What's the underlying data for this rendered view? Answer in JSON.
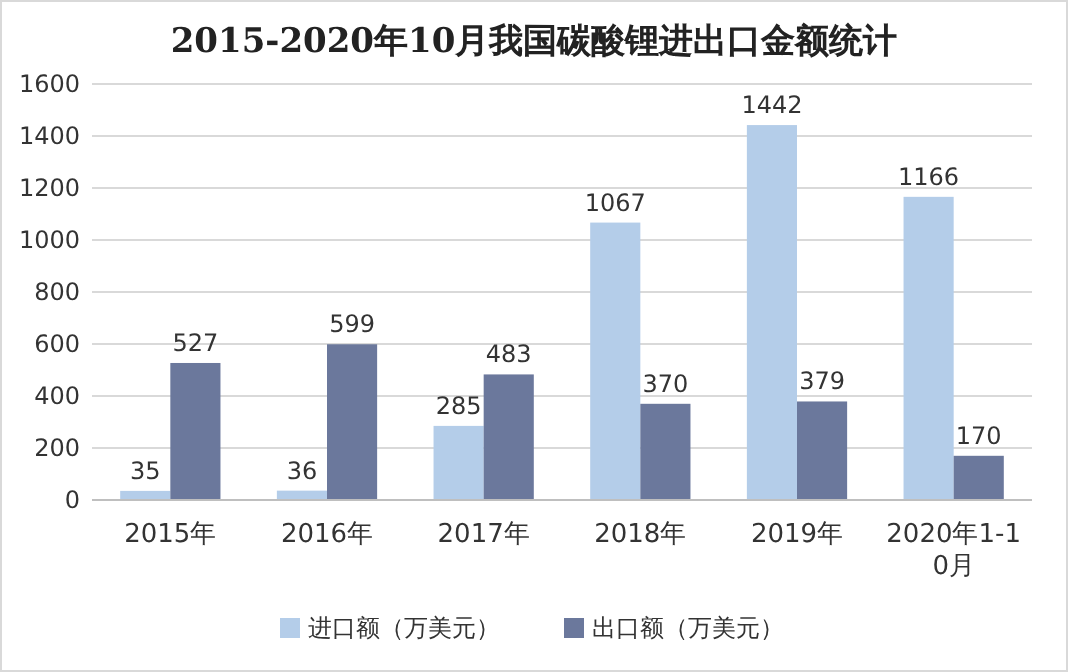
{
  "chart_data": {
    "type": "bar",
    "title": "2015-2020年10月我国碳酸锂进出口金额统计",
    "categories": [
      "2015年",
      "2016年",
      "2017年",
      "2018年",
      "2019年",
      "2020年1-10月"
    ],
    "series": [
      {
        "name": "进口额（万美元）",
        "color": "#b4cde9",
        "values": [
          35,
          36,
          285,
          1067,
          1442,
          1166
        ]
      },
      {
        "name": "出口额（万美元）",
        "color": "#6b789c",
        "values": [
          527,
          599,
          483,
          370,
          379,
          170
        ]
      }
    ],
    "ylim": [
      0,
      1600
    ],
    "yticks": [
      0,
      200,
      400,
      600,
      800,
      1000,
      1200,
      1400,
      1600
    ],
    "grid": "y",
    "legend": "bottom",
    "data_labels": true
  }
}
